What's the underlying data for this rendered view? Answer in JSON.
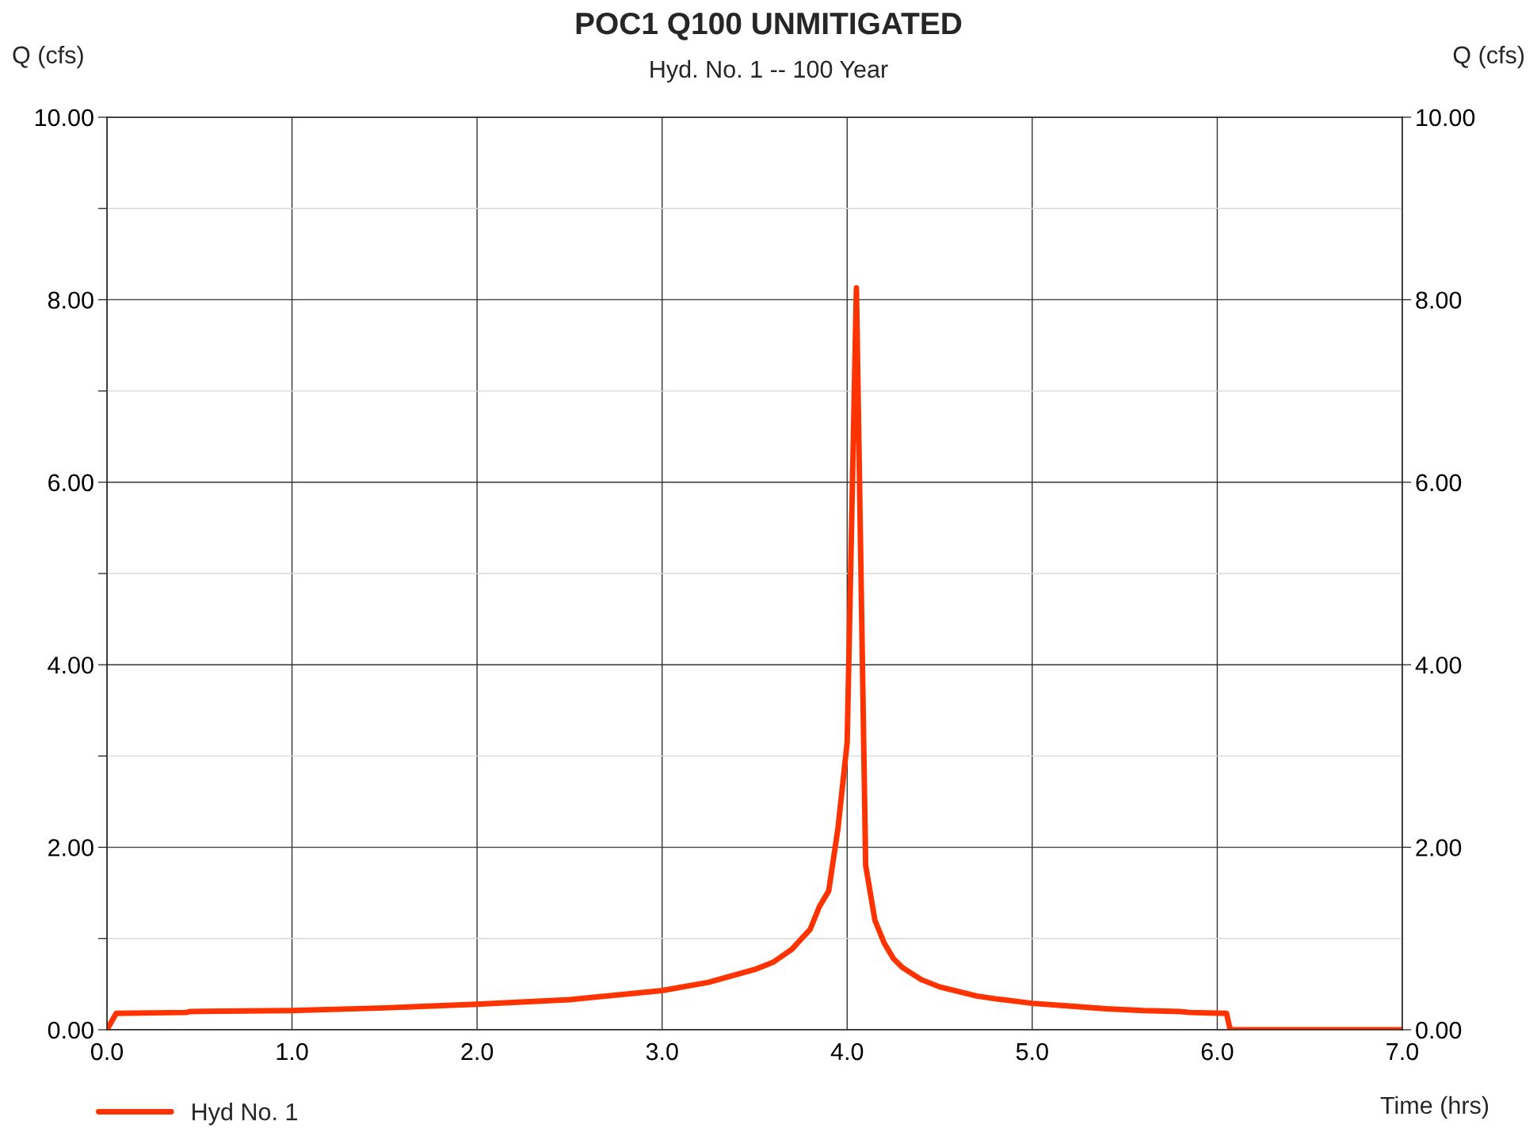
{
  "chart_data": {
    "type": "line",
    "title": "POC1 Q100 UNMITIGATED",
    "subtitle": "Hyd. No. 1 -- 100 Year",
    "xlabel": "Time (hrs)",
    "ylabel": "Q (cfs)",
    "y2label": "Q (cfs)",
    "series": [
      {
        "name": "Hyd No. 1",
        "color": "#ff3300",
        "axis": "y",
        "x": [
          0,
          0.05,
          0.43,
          0.45,
          1.0,
          1.5,
          2.0,
          2.5,
          3.0,
          3.25,
          3.5,
          3.6,
          3.7,
          3.8,
          3.85,
          3.9,
          3.95,
          4.0,
          4.05,
          4.1,
          4.15,
          4.2,
          4.25,
          4.3,
          4.4,
          4.5,
          4.6,
          4.7,
          4.8,
          5.0,
          5.2,
          5.4,
          5.6,
          5.8,
          5.85,
          6.05,
          6.07,
          7.0
        ],
        "values": [
          0,
          0.18,
          0.19,
          0.2,
          0.21,
          0.24,
          0.28,
          0.33,
          0.43,
          0.52,
          0.66,
          0.74,
          0.88,
          1.1,
          1.35,
          1.52,
          2.2,
          3.15,
          8.13,
          1.8,
          1.2,
          0.95,
          0.78,
          0.68,
          0.55,
          0.47,
          0.42,
          0.37,
          0.34,
          0.29,
          0.26,
          0.23,
          0.21,
          0.2,
          0.19,
          0.18,
          0.0,
          0.0
        ]
      }
    ],
    "xlim": [
      0,
      7
    ],
    "xticks": [
      {
        "value": 0,
        "label": "0.0"
      },
      {
        "value": 1,
        "label": "1.0"
      },
      {
        "value": 2,
        "label": "2.0"
      },
      {
        "value": 3,
        "label": "3.0"
      },
      {
        "value": 4,
        "label": "4.0"
      },
      {
        "value": 5,
        "label": "5.0"
      },
      {
        "value": 6,
        "label": "6.0"
      },
      {
        "value": 7,
        "label": "7.0"
      }
    ],
    "ylim": [
      0,
      10
    ],
    "yticks": [
      {
        "value": 0,
        "label": "0.00"
      },
      {
        "value": 1,
        "label": null
      },
      {
        "value": 2,
        "label": "2.00"
      },
      {
        "value": 3,
        "label": null
      },
      {
        "value": 4,
        "label": "4.00"
      },
      {
        "value": 5,
        "label": null
      },
      {
        "value": 6,
        "label": "6.00"
      },
      {
        "value": 7,
        "label": null
      },
      {
        "value": 8,
        "label": "8.00"
      },
      {
        "value": 9,
        "label": null
      },
      {
        "value": 10,
        "label": "10.00"
      }
    ],
    "y2lim": [
      0,
      10
    ],
    "y2ticks": [
      {
        "value": 0,
        "label": "0.00"
      },
      {
        "value": 2,
        "label": "2.00"
      },
      {
        "value": 4,
        "label": "4.00"
      },
      {
        "value": 6,
        "label": "6.00"
      },
      {
        "value": 8,
        "label": "8.00"
      },
      {
        "value": 10,
        "label": "10.00"
      }
    ],
    "grid": true,
    "legend": "bottom left",
    "marker": "none",
    "line_style": "solid"
  }
}
